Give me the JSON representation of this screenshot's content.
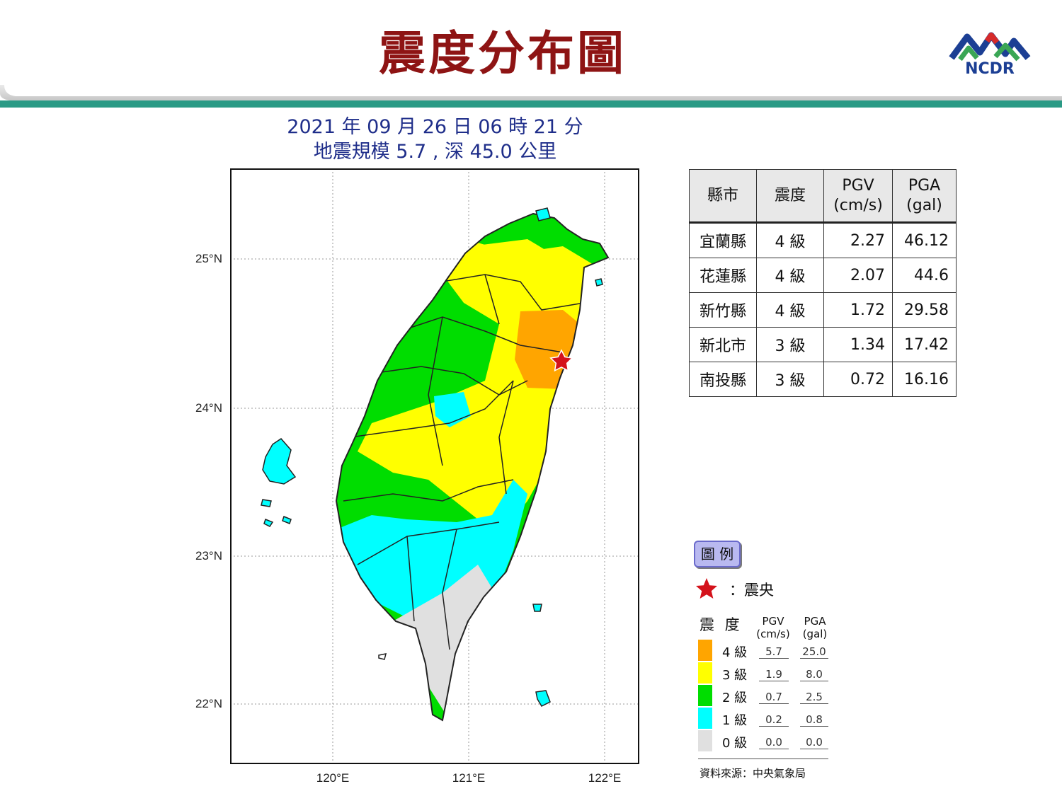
{
  "header": {
    "title": "震度分布圖",
    "logo_text": "NCDR",
    "colors": {
      "title": "#8e1414",
      "logo_blue": "#1c3f94",
      "logo_green": "#3aa655",
      "logo_red": "#d62a2a",
      "band_teal": "#2a9a85"
    }
  },
  "event": {
    "time_text": "2021 年 09 月 26 日 06 時 21 分",
    "info_text": "地震規模 5.7 , 深 45.0 公里"
  },
  "map": {
    "lat_labels": [
      "25°N",
      "24°N",
      "23°N",
      "22°N"
    ],
    "lon_labels": [
      "120°E",
      "121°E",
      "122°E"
    ],
    "epicenter_icon": "red-star-icon",
    "zone_colors": {
      "4": "#ffa500",
      "3": "#ffff00",
      "2": "#00dd00",
      "1": "#00ffff",
      "0": "#e0e0e0"
    }
  },
  "table": {
    "headers": [
      "縣市",
      "震度",
      "PGV\n(cm/s)",
      "PGA\n(gal)"
    ],
    "rows": [
      {
        "county": "宜蘭縣",
        "level": "4 級",
        "pgv": "2.27",
        "pga": "46.12"
      },
      {
        "county": "花蓮縣",
        "level": "4 級",
        "pgv": "2.07",
        "pga": "44.6"
      },
      {
        "county": "新竹縣",
        "level": "4 級",
        "pgv": "1.72",
        "pga": "29.58"
      },
      {
        "county": "新北市",
        "level": "3 級",
        "pgv": "1.34",
        "pga": "17.42"
      },
      {
        "county": "南投縣",
        "level": "3 級",
        "pgv": "0.72",
        "pga": "16.16"
      }
    ]
  },
  "legend": {
    "title": "圖 例",
    "epicenter_label": "：震央",
    "intensity_header": "震 度",
    "pgv_header": "PGV\n(cm/s)",
    "pga_header": "PGA\n(gal)",
    "levels": [
      {
        "label": "4 級",
        "pgv": "5.7",
        "pga": "25.0",
        "color": "#ffa500"
      },
      {
        "label": "3 級",
        "pgv": "1.9",
        "pga": "8.0",
        "color": "#ffff00"
      },
      {
        "label": "2 級",
        "pgv": "0.7",
        "pga": "2.5",
        "color": "#00dd00"
      },
      {
        "label": "1 級",
        "pgv": "0.2",
        "pga": "0.8",
        "color": "#00ffff"
      },
      {
        "label": "0 級",
        "pgv": "0.0",
        "pga": "0.0",
        "color": "#e0e0e0"
      }
    ],
    "source": "資料來源：中央氣象局"
  }
}
